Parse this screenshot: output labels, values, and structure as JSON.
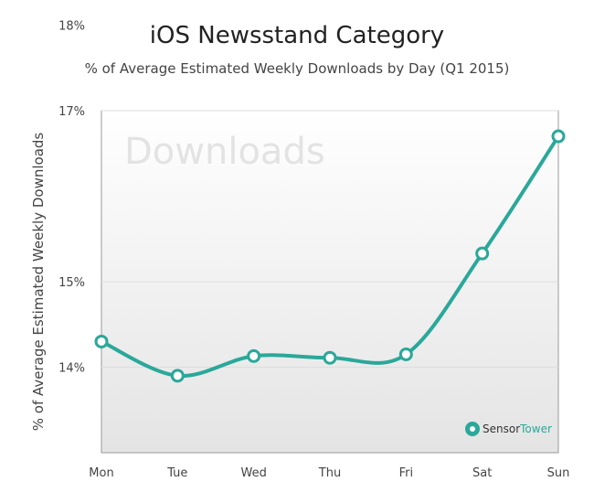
{
  "chart_data": {
    "type": "line",
    "title": "iOS Newsstand Category",
    "subtitle": "% of Average Estimated Weekly Downloads by Day (Q1 2015)",
    "xlabel": "",
    "ylabel": "% of  Average Estimated Weekly Downloads",
    "categories": [
      "Mon",
      "Tue",
      "Wed",
      "Thu",
      "Fri",
      "Sat",
      "Sun"
    ],
    "y_ticks": [
      "14%",
      "15%",
      "17%",
      "18%"
    ],
    "ylim": [
      13,
      17
    ],
    "series": [
      {
        "values": [
          14.3,
          13.9,
          14.13,
          14.11,
          14.15,
          15.33,
          16.7
        ],
        "color": "#2aa89a"
      }
    ],
    "grid": true,
    "watermark": "Downloads",
    "logo": {
      "text_a": "Sensor",
      "text_b": "Tower"
    }
  }
}
